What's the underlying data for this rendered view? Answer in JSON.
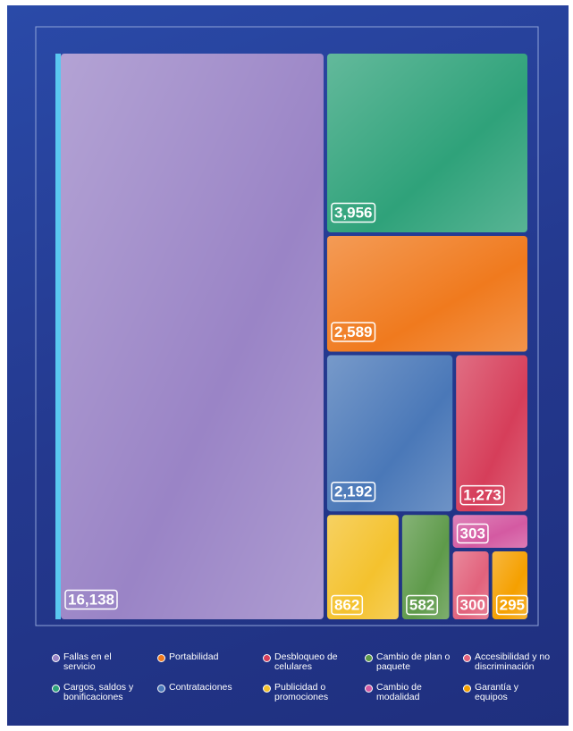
{
  "chart_data": {
    "type": "treemap",
    "categories": [
      "Fallas en el servicio",
      "Cargos, saldos y bonificaciones",
      "Portabilidad",
      "Contrataciones",
      "Desbloqueo de celulares",
      "Publicidad o promociones",
      "Cambio de plan o paquete",
      "Cambio de modalidad",
      "Accesibilidad y no discriminación",
      "Garantía y equipos"
    ],
    "values": [
      16138,
      3956,
      2589,
      2192,
      1273,
      862,
      582,
      303,
      300,
      295
    ],
    "value_labels": [
      "16,138",
      "3,956",
      "2,589",
      "2,192",
      "1,273",
      "862",
      "582",
      "303",
      "300",
      "295"
    ],
    "colors": [
      "#9a84c6",
      "#2fa27a",
      "#f07a1e",
      "#4a78b8",
      "#d63e5a",
      "#f4c22e",
      "#5e9a4a",
      "#d45aa2",
      "#e2627c",
      "#f5a000"
    ]
  }
}
